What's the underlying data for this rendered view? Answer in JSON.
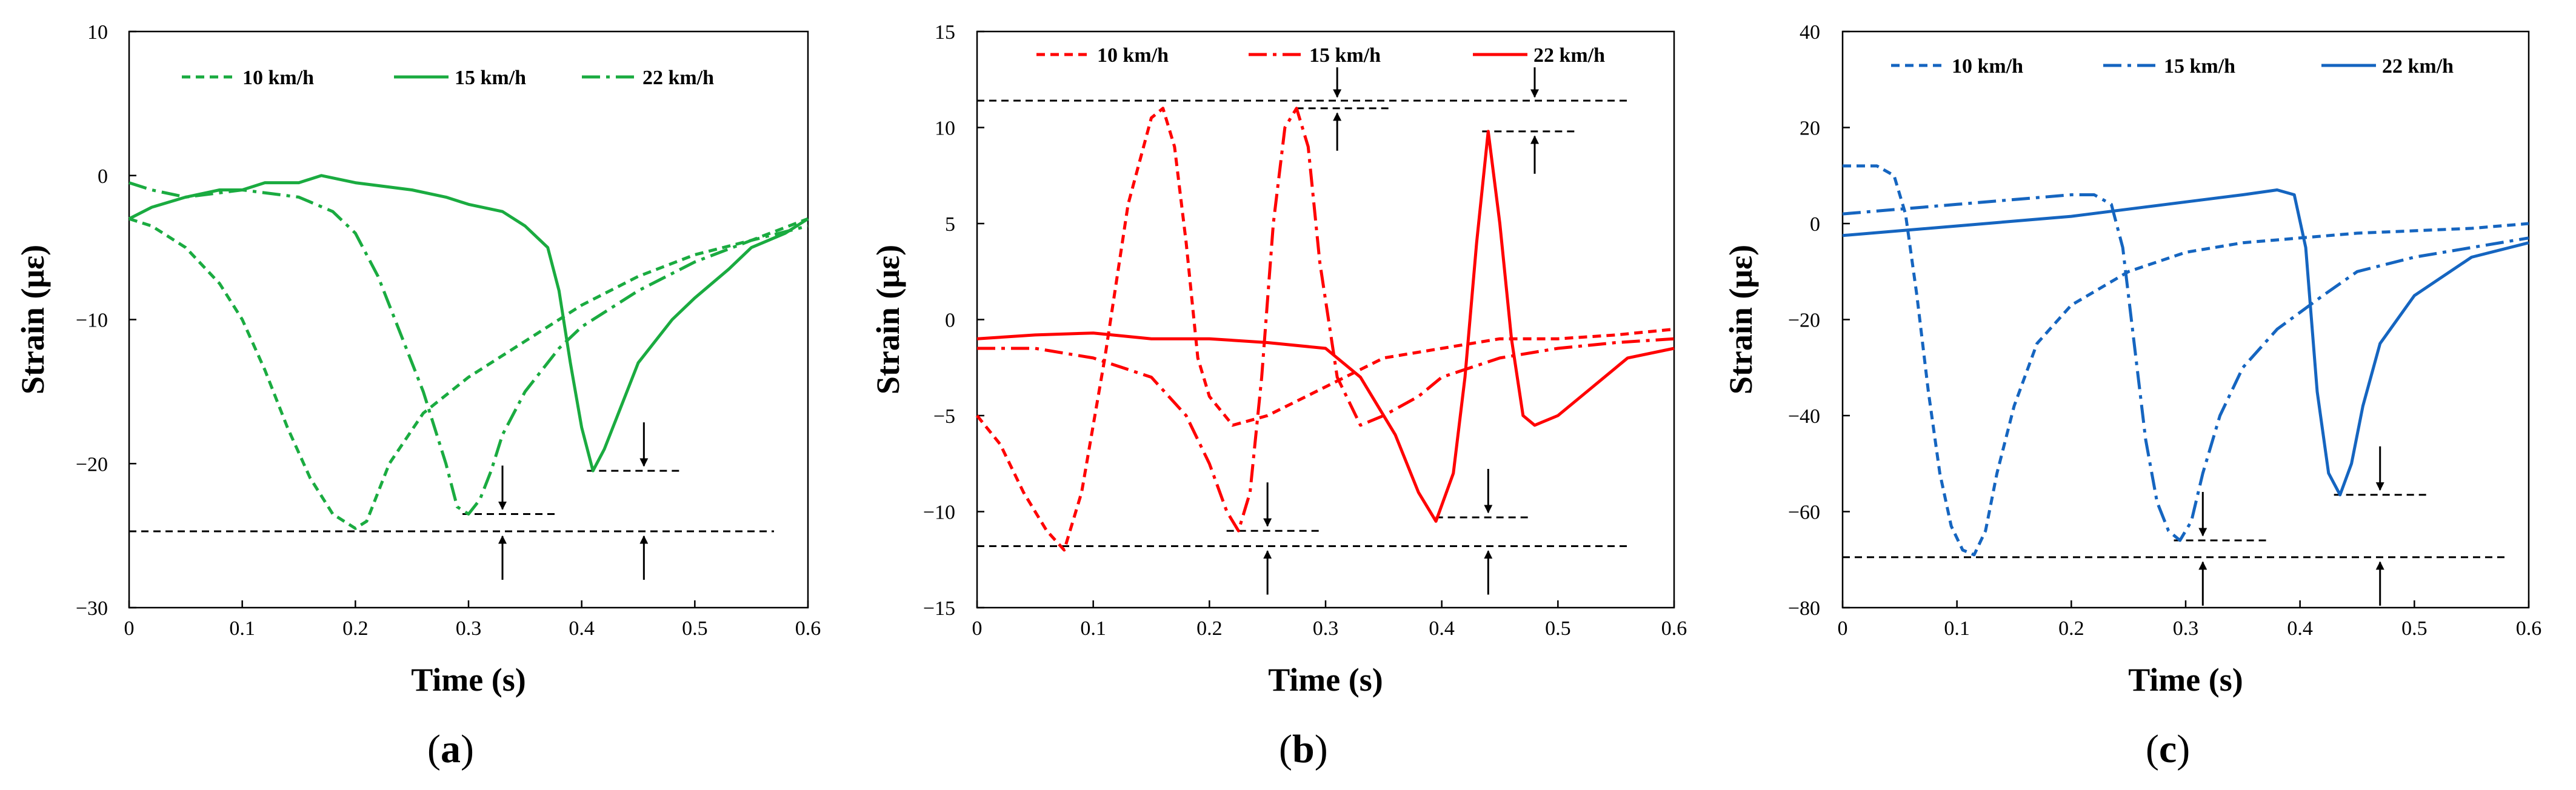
{
  "chart_data": [
    {
      "type": "line",
      "panel_label": "(a)",
      "color": "#1aab40",
      "xlabel": "Time (s)",
      "ylabel": "Strain (με)",
      "xlim": [
        0,
        0.6
      ],
      "ylim": [
        -30,
        10
      ],
      "xticks": [
        "0",
        "0.1",
        "0.2",
        "0.3",
        "0.4",
        "0.5",
        "0.6"
      ],
      "yticks": [
        "10",
        "0",
        "−10",
        "−20",
        "−30"
      ],
      "series": [
        {
          "name": "10 km/h",
          "dash": "dashed",
          "x": [
            0,
            0.02,
            0.05,
            0.08,
            0.1,
            0.12,
            0.14,
            0.16,
            0.18,
            0.2,
            0.21,
            0.23,
            0.26,
            0.3,
            0.35,
            0.4,
            0.45,
            0.5,
            0.55,
            0.6
          ],
          "y": [
            -3,
            -3.5,
            -5,
            -7.5,
            -10,
            -13.5,
            -17.5,
            -21,
            -23.5,
            -24.5,
            -24,
            -20,
            -16.5,
            -14,
            -11.5,
            -9,
            -7,
            -5.5,
            -4.5,
            -3
          ]
        },
        {
          "name": "15 km/h",
          "dash": "solid",
          "x": [
            0,
            0.02,
            0.05,
            0.08,
            0.1,
            0.12,
            0.15,
            0.17,
            0.2,
            0.25,
            0.28,
            0.3,
            0.33,
            0.35,
            0.37,
            0.38,
            0.39,
            0.4,
            0.41,
            0.42,
            0.43,
            0.45,
            0.48,
            0.5,
            0.53,
            0.55,
            0.58,
            0.6
          ],
          "y": [
            -3,
            -2.2,
            -1.5,
            -1,
            -1,
            -0.5,
            -0.5,
            0,
            -0.5,
            -1,
            -1.5,
            -2,
            -2.5,
            -3.5,
            -5,
            -8,
            -13,
            -17.5,
            -20.5,
            -19,
            -17,
            -13,
            -10,
            -8.5,
            -6.5,
            -5,
            -4,
            -3
          ]
        },
        {
          "name": "22 km/h",
          "dash": "dashdot",
          "x": [
            0,
            0.02,
            0.05,
            0.1,
            0.15,
            0.18,
            0.2,
            0.22,
            0.24,
            0.26,
            0.28,
            0.29,
            0.3,
            0.31,
            0.32,
            0.33,
            0.35,
            0.38,
            0.4,
            0.45,
            0.5,
            0.55,
            0.6
          ],
          "y": [
            -0.5,
            -1,
            -1.5,
            -1,
            -1.5,
            -2.5,
            -4,
            -7,
            -11,
            -15,
            -20,
            -23,
            -23.5,
            -22.5,
            -20.5,
            -18,
            -15,
            -12,
            -10.5,
            -8,
            -6,
            -4.5,
            -3.5
          ]
        }
      ],
      "reference": {
        "y": -24.7,
        "x_range": [
          0,
          0.57
        ],
        "arrows_x": [
          0.33,
          0.455
        ]
      },
      "peak_marks": [
        {
          "peak": {
            "x": 0.3,
            "y": -23.5
          },
          "arrow_x": 0.33
        },
        {
          "peak": {
            "x": 0.41,
            "y": -20.5
          },
          "arrow_x": 0.455
        }
      ]
    },
    {
      "type": "line",
      "panel_label": "(b)",
      "color": "#ff0000",
      "xlabel": "Time (s)",
      "ylabel": "Strain (με)",
      "xlim": [
        0,
        0.6
      ],
      "ylim": [
        -15,
        15
      ],
      "xticks": [
        "0",
        "0.1",
        "0.2",
        "0.3",
        "0.4",
        "0.5",
        "0.6"
      ],
      "yticks": [
        "15",
        "10",
        "5",
        "0",
        "−5",
        "−10",
        "−15"
      ],
      "series": [
        {
          "name": "10 km/h",
          "dash": "dashed",
          "x": [
            0,
            0.02,
            0.04,
            0.06,
            0.075,
            0.09,
            0.11,
            0.13,
            0.15,
            0.16,
            0.17,
            0.18,
            0.19,
            0.2,
            0.22,
            0.25,
            0.3,
            0.35,
            0.4,
            0.45,
            0.5,
            0.55,
            0.6
          ],
          "y": [
            -5,
            -6.5,
            -9,
            -11,
            -12,
            -9,
            -2,
            6,
            10.5,
            11,
            9,
            4,
            -2,
            -4,
            -5.5,
            -5,
            -3.5,
            -2,
            -1.5,
            -1,
            -1,
            -0.8,
            -0.5
          ]
        },
        {
          "name": "15 km/h",
          "dash": "dashdot",
          "x": [
            0,
            0.05,
            0.1,
            0.15,
            0.18,
            0.2,
            0.215,
            0.225,
            0.235,
            0.245,
            0.255,
            0.265,
            0.275,
            0.285,
            0.295,
            0.31,
            0.33,
            0.35,
            0.38,
            0.4,
            0.45,
            0.5,
            0.55,
            0.6
          ],
          "y": [
            -1.5,
            -1.5,
            -2,
            -3,
            -5,
            -7.5,
            -10,
            -11,
            -9,
            -3,
            5,
            10,
            11,
            9,
            3,
            -3,
            -5.5,
            -5,
            -4,
            -3,
            -2,
            -1.5,
            -1.2,
            -1
          ]
        },
        {
          "name": "22 km/h",
          "dash": "solid",
          "x": [
            0,
            0.05,
            0.1,
            0.15,
            0.2,
            0.25,
            0.3,
            0.33,
            0.36,
            0.38,
            0.395,
            0.41,
            0.42,
            0.43,
            0.44,
            0.45,
            0.46,
            0.47,
            0.48,
            0.5,
            0.53,
            0.56,
            0.6
          ],
          "y": [
            -1,
            -0.8,
            -0.7,
            -1,
            -1,
            -1.2,
            -1.5,
            -3,
            -6,
            -9,
            -10.5,
            -8,
            -3,
            4,
            9.8,
            5,
            -1,
            -5,
            -5.5,
            -5,
            -3.5,
            -2,
            -1.5
          ]
        }
      ],
      "reference": {
        "y_top": 11.4,
        "y_bottom": -11.8,
        "x_range": [
          0,
          0.56
        ],
        "arrows_x": [
          0.25,
          0.44
        ]
      },
      "peak_marks": [
        {
          "peak": {
            "x": 0.28,
            "y": 11
          },
          "arrow_x": 0.31
        },
        {
          "peak": {
            "x": 0.44,
            "y": 9.8
          },
          "arrow_x": 0.48
        },
        {
          "peak": {
            "x": 0.22,
            "y": -11
          },
          "arrow_x": 0.25
        },
        {
          "peak": {
            "x": 0.4,
            "y": -10.3
          },
          "arrow_x": 0.44
        }
      ]
    },
    {
      "type": "line",
      "panel_label": "(c)",
      "color": "#1565c0",
      "xlabel": "Time (s)",
      "ylabel": "Strain (με)",
      "xlim": [
        0,
        0.6
      ],
      "ylim": [
        -80,
        40
      ],
      "xticks": [
        "0",
        "0.1",
        "0.2",
        "0.3",
        "0.4",
        "0.5",
        "0.6"
      ],
      "yticks": [
        "40",
        "20",
        "0",
        "−20",
        "−40",
        "−60",
        "−80"
      ],
      "series": [
        {
          "name": "10 km/h",
          "dash": "dashed",
          "x": [
            0,
            0.03,
            0.045,
            0.055,
            0.065,
            0.075,
            0.085,
            0.095,
            0.105,
            0.115,
            0.125,
            0.135,
            0.15,
            0.17,
            0.2,
            0.25,
            0.3,
            0.35,
            0.4,
            0.45,
            0.5,
            0.55,
            0.6
          ],
          "y": [
            12,
            12,
            10,
            2,
            -15,
            -35,
            -52,
            -63,
            -68,
            -69,
            -64,
            -52,
            -38,
            -25,
            -17,
            -10,
            -6,
            -4,
            -3,
            -2,
            -1.5,
            -1,
            0
          ]
        },
        {
          "name": "15 km/h",
          "dash": "dashdot",
          "x": [
            0,
            0.05,
            0.1,
            0.15,
            0.2,
            0.22,
            0.235,
            0.245,
            0.255,
            0.265,
            0.275,
            0.285,
            0.295,
            0.305,
            0.315,
            0.33,
            0.35,
            0.38,
            0.42,
            0.45,
            0.5,
            0.55,
            0.6
          ],
          "y": [
            2,
            3,
            4,
            5,
            6,
            6,
            4,
            -5,
            -25,
            -45,
            -58,
            -64,
            -66,
            -62,
            -52,
            -40,
            -30,
            -22,
            -15,
            -10,
            -7,
            -5,
            -3
          ]
        },
        {
          "name": "22 km/h",
          "dash": "solid",
          "x": [
            0,
            0.05,
            0.1,
            0.15,
            0.2,
            0.25,
            0.3,
            0.35,
            0.38,
            0.395,
            0.405,
            0.415,
            0.425,
            0.435,
            0.445,
            0.455,
            0.47,
            0.5,
            0.55,
            0.6
          ],
          "y": [
            -2.5,
            -1.5,
            -0.5,
            0.5,
            1.5,
            3,
            4.5,
            6,
            7,
            6,
            -5,
            -35,
            -52,
            -56.5,
            -50,
            -38,
            -25,
            -15,
            -7,
            -4
          ]
        }
      ],
      "reference": {
        "y": -69.5,
        "x_range": [
          0,
          0.58
        ],
        "arrows_x": [
          0.315,
          0.47
        ]
      },
      "peak_marks": [
        {
          "peak": {
            "x": 0.295,
            "y": -66
          },
          "arrow_x": 0.315
        },
        {
          "peak": {
            "x": 0.435,
            "y": -56.5
          },
          "arrow_x": 0.47
        }
      ]
    }
  ]
}
